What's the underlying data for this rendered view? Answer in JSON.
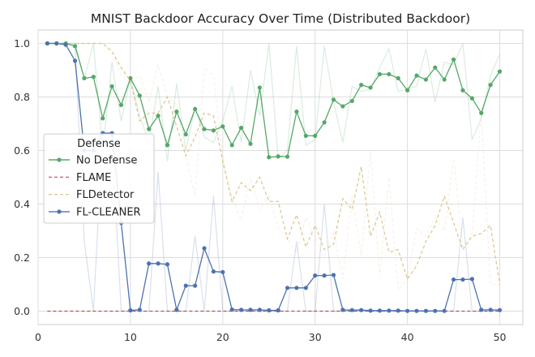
{
  "chart_data": {
    "type": "line",
    "title": "MNIST Backdoor Accuracy Over Time (Distributed Backdoor)",
    "xlabel": "",
    "ylabel": "",
    "xlim": [
      0,
      52.5
    ],
    "ylim": [
      -0.05,
      1.05
    ],
    "xticks": [
      0,
      10,
      20,
      30,
      40,
      50
    ],
    "yticks": [
      0.0,
      0.2,
      0.4,
      0.6,
      0.8,
      1.0
    ],
    "ytick_labels": [
      "0.0",
      "0.2",
      "0.4",
      "0.6",
      "0.8",
      "1.0"
    ],
    "grid": true,
    "legend": {
      "title": "Defense",
      "placement": "center-left"
    },
    "x": [
      1,
      2,
      3,
      4,
      5,
      6,
      7,
      8,
      9,
      10,
      11,
      12,
      13,
      14,
      15,
      16,
      17,
      18,
      19,
      20,
      21,
      22,
      23,
      24,
      25,
      26,
      27,
      28,
      29,
      30,
      31,
      32,
      33,
      34,
      35,
      36,
      37,
      38,
      39,
      40,
      41,
      42,
      43,
      44,
      45,
      46,
      47,
      48,
      49,
      50
    ],
    "series": [
      {
        "name": "No Defense",
        "color": "#55a868",
        "style": "solid-marker",
        "values": [
          1.0,
          1.0,
          1.0,
          0.99,
          0.87,
          0.875,
          0.72,
          0.84,
          0.77,
          0.87,
          0.805,
          0.68,
          0.73,
          0.62,
          0.745,
          0.66,
          0.755,
          0.68,
          0.675,
          0.69,
          0.62,
          0.685,
          0.625,
          0.835,
          0.575,
          0.578,
          0.577,
          0.745,
          0.655,
          0.655,
          0.705,
          0.79,
          0.765,
          0.785,
          0.845,
          0.835,
          0.885,
          0.885,
          0.87,
          0.825,
          0.88,
          0.865,
          0.91,
          0.865,
          0.94,
          0.825,
          0.795,
          0.74,
          0.845,
          0.895
        ],
        "raw_values": [
          1.0,
          1.0,
          1.0,
          1.0,
          0.87,
          1.0,
          0.6,
          0.93,
          0.71,
          0.87,
          0.73,
          0.63,
          0.84,
          0.56,
          0.85,
          0.6,
          0.76,
          0.65,
          0.63,
          0.71,
          0.84,
          0.63,
          0.9,
          0.73,
          1.0,
          0.57,
          0.6,
          0.99,
          0.62,
          0.64,
          0.99,
          0.78,
          0.63,
          0.84,
          0.82,
          0.83,
          0.91,
          0.98,
          0.82,
          0.83,
          0.84,
          0.98,
          0.78,
          0.93,
          0.92,
          1.0,
          0.64,
          0.72,
          0.88,
          0.96
        ]
      },
      {
        "name": "FLAME",
        "color": "#c44e52",
        "style": "dashed",
        "values": [
          0.0,
          0.0,
          0.0,
          0.0,
          0.0,
          0.0,
          0.0,
          0.0,
          0.0,
          0.0,
          0.0,
          0.0,
          0.0,
          0.0,
          0.0,
          0.0,
          0.0,
          0.0,
          0.0,
          0.0,
          0.0,
          0.0,
          0.0,
          0.0,
          0.0,
          0.0,
          0.0,
          0.0,
          0.0,
          0.0,
          0.0,
          0.0,
          0.0,
          0.0,
          0.0,
          0.0,
          0.0,
          0.0,
          0.0,
          0.0,
          0.0,
          0.0,
          0.0,
          0.0,
          0.0,
          0.0,
          0.0,
          0.0,
          0.0,
          0.0
        ]
      },
      {
        "name": "FLDetector",
        "color": "#dcc48d",
        "style": "dashed",
        "values": [
          1.0,
          1.0,
          1.0,
          1.0,
          1.0,
          1.0,
          1.0,
          0.97,
          0.91,
          0.86,
          0.71,
          0.74,
          0.74,
          0.8,
          0.69,
          0.58,
          0.65,
          0.74,
          0.73,
          0.56,
          0.41,
          0.48,
          0.45,
          0.5,
          0.41,
          0.41,
          0.27,
          0.36,
          0.24,
          0.32,
          0.23,
          0.25,
          0.42,
          0.38,
          0.54,
          0.28,
          0.37,
          0.22,
          0.23,
          0.12,
          0.17,
          0.26,
          0.32,
          0.43,
          0.33,
          0.23,
          0.28,
          0.29,
          0.32,
          0.1
        ],
        "raw_values": [
          1.0,
          1.0,
          1.0,
          1.0,
          1.0,
          1.0,
          1.0,
          0.97,
          0.88,
          0.85,
          0.88,
          0.78,
          0.92,
          0.8,
          0.77,
          0.58,
          0.43,
          0.91,
          0.88,
          0.57,
          0.42,
          0.34,
          0.5,
          0.38,
          0.43,
          0.31,
          0.27,
          0.22,
          0.35,
          0.27,
          0.2,
          0.3,
          0.12,
          0.43,
          0.21,
          0.6,
          0.13,
          0.5,
          0.08,
          0.12,
          0.31,
          0.28,
          0.35,
          0.3,
          0.57,
          0.24,
          0.29,
          0.74,
          0.1,
          0.1
        ]
      },
      {
        "name": "FL-CLEANER",
        "color": "#4c72b0",
        "style": "solid-marker",
        "values": [
          1.0,
          1.0,
          0.995,
          0.935,
          0.6,
          0.6,
          0.665,
          0.665,
          0.33,
          0.003,
          0.005,
          0.178,
          0.178,
          0.175,
          0.005,
          0.095,
          0.095,
          0.235,
          0.148,
          0.146,
          0.006,
          0.005,
          0.005,
          0.005,
          0.003,
          0.003,
          0.087,
          0.087,
          0.087,
          0.133,
          0.133,
          0.135,
          0.005,
          0.004,
          0.004,
          0.002,
          0.002,
          0.002,
          0.002,
          0.001,
          0.001,
          0.001,
          0.001,
          0.001,
          0.118,
          0.118,
          0.12,
          0.005,
          0.005,
          0.004
        ],
        "raw_values": [
          1.0,
          1.0,
          1.0,
          0.99,
          0.26,
          0.0,
          0.67,
          0.65,
          0.0,
          0.0,
          0.0,
          0.0,
          0.52,
          0.0,
          0.0,
          0.0,
          0.28,
          0.0,
          0.43,
          0.0,
          0.0,
          0.0,
          0.0,
          0.0,
          0.0,
          0.0,
          0.0,
          0.26,
          0.0,
          0.0,
          0.4,
          0.0,
          0.0,
          0.0,
          0.0,
          0.0,
          0.0,
          0.0,
          0.0,
          0.0,
          0.0,
          0.0,
          0.0,
          0.0,
          0.0,
          0.35,
          0.0,
          0.0,
          0.0,
          0.0
        ]
      }
    ]
  }
}
